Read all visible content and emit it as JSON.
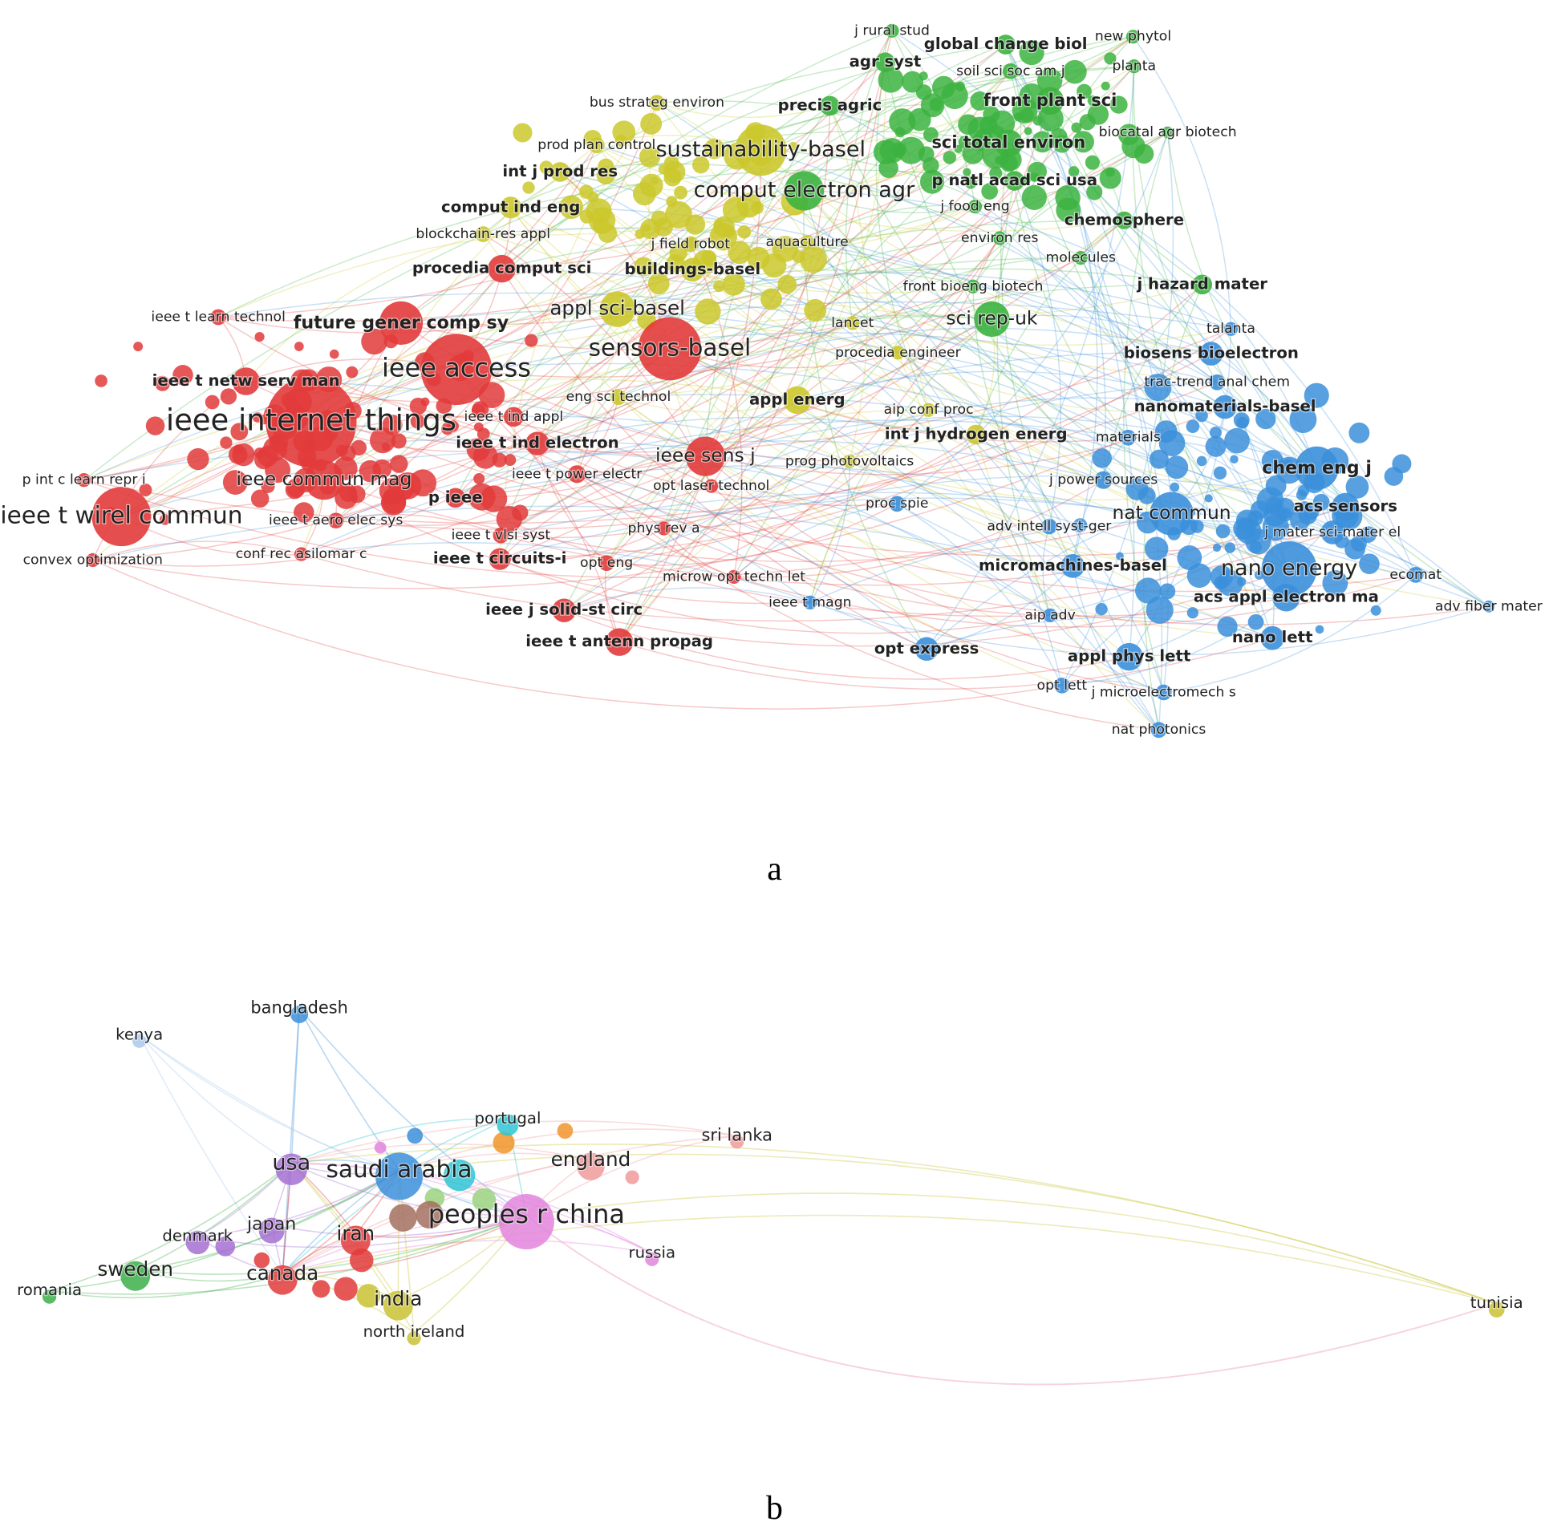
{
  "network_a": {
    "panel_label": "a",
    "labels": [
      "j rural stud",
      "global change biol",
      "new phytol",
      "agr syst",
      "soil sci soc am j",
      "planta",
      "precis agric",
      "front plant sci",
      "biocatal agr biotech",
      "sci total environ",
      "comput electron agr",
      "p natl acad sci usa",
      "j food eng",
      "chemosphere",
      "environ res",
      "molecules",
      "front bioeng biotech",
      "sci rep-uk",
      "j hazard mater",
      "bus strateg environ",
      "prod plan control",
      "sustainability-basel",
      "int j prod res",
      "comput ind eng",
      "blockchain-res appl",
      "j field robot",
      "aquaculture",
      "buildings-basel",
      "appl sci-basel",
      "lancet",
      "procedia engineer",
      "appl energ",
      "aip conf proc",
      "int j hydrogen energ",
      "prog photovoltaics",
      "eng sci technol",
      "procedia comput sci",
      "ieee t learn technol",
      "future gener comp sy",
      "ieee access",
      "sensors-basel",
      "ieee t netw serv man",
      "ieee internet things",
      "ieee t ind appl",
      "ieee t ind electron",
      "ieee sens j",
      "p int c learn repr i",
      "ieee commun mag",
      "ieee t power electr",
      "opt laser technol",
      "p ieee",
      "ieee t wirel commun",
      "ieee t aero elec sys",
      "ieee t vlsi syst",
      "phys rev a",
      "convex optimization",
      "conf rec asilomar c",
      "ieee t circuits-i",
      "opt eng",
      "microw opt techn let",
      "ieee j solid-st circ",
      "ieee t antenn propag",
      "talanta",
      "biosens bioelectron",
      "trac-trend anal chem",
      "nanomaterials-basel",
      "materials",
      "chem eng j",
      "j power sources",
      "proc spie",
      "acs sensors",
      "nat commun",
      "adv intell syst-ger",
      "j mater sci-mater el",
      "micromachines-basel",
      "nano energy",
      "ecomat",
      "acs appl electron ma",
      "adv fiber mater",
      "ieee t magn",
      "aip adv",
      "opt express",
      "nano lett",
      "appl phys lett",
      "opt lett",
      "j microelectromech s",
      "nat photonics"
    ]
  },
  "network_b": {
    "panel_label": "b",
    "labels": [
      "bangladesh",
      "kenya",
      "portugal",
      "sri lanka",
      "usa",
      "saudi arabia",
      "england",
      "peoples r china",
      "denmark",
      "japan",
      "iran",
      "russia",
      "sweden",
      "canada",
      "romania",
      "india",
      "north ireland",
      "tunisia"
    ]
  }
}
